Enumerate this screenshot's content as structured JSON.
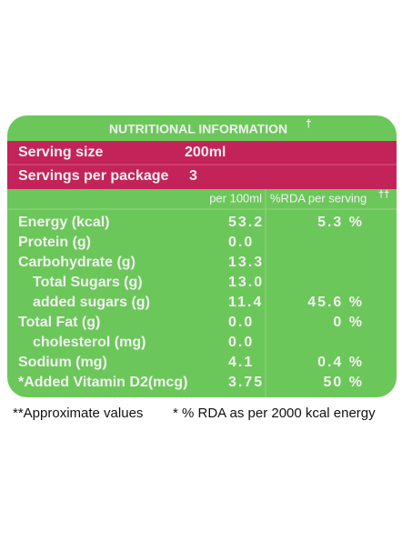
{
  "header": {
    "title": "NUTRITIONAL INFORMATION",
    "title_mark": "†"
  },
  "serving": [
    {
      "label": "Serving size",
      "value": "200ml"
    },
    {
      "label": "Servings per package",
      "value": "3"
    }
  ],
  "columns": {
    "per_100ml": "per 100ml",
    "rda": "%RDA per serving",
    "rda_mark": "††"
  },
  "table": {
    "rows": [
      {
        "label": "Energy (kcal)",
        "per_100ml": "53.2",
        "rda": "5.3 %"
      },
      {
        "label": "Protein (g)",
        "per_100ml": "0.0"
      },
      {
        "label": "Carbohydrate (g)",
        "per_100ml": "13.3"
      },
      {
        "label": "Total Sugars (g)",
        "per_100ml": "13.0",
        "indent": true
      },
      {
        "label": "added sugars (g)",
        "per_100ml": "11.4",
        "rda": "45.6 %",
        "indent": true
      },
      {
        "label": "Total Fat (g)",
        "per_100ml": "0.0",
        "rda": "0 %"
      },
      {
        "label": "cholesterol (mg)",
        "per_100ml": "0.0",
        "indent": true
      },
      {
        "label": "Sodium (mg)",
        "per_100ml": "4.1",
        "rda": "0.4 %"
      },
      {
        "label": "*Added Vitamin D2(mcg)",
        "per_100ml": "3.75",
        "rda": "50 %"
      }
    ]
  },
  "footnotes": [
    "**Approximate values",
    "* % RDA as per 2000 kcal energy"
  ]
}
